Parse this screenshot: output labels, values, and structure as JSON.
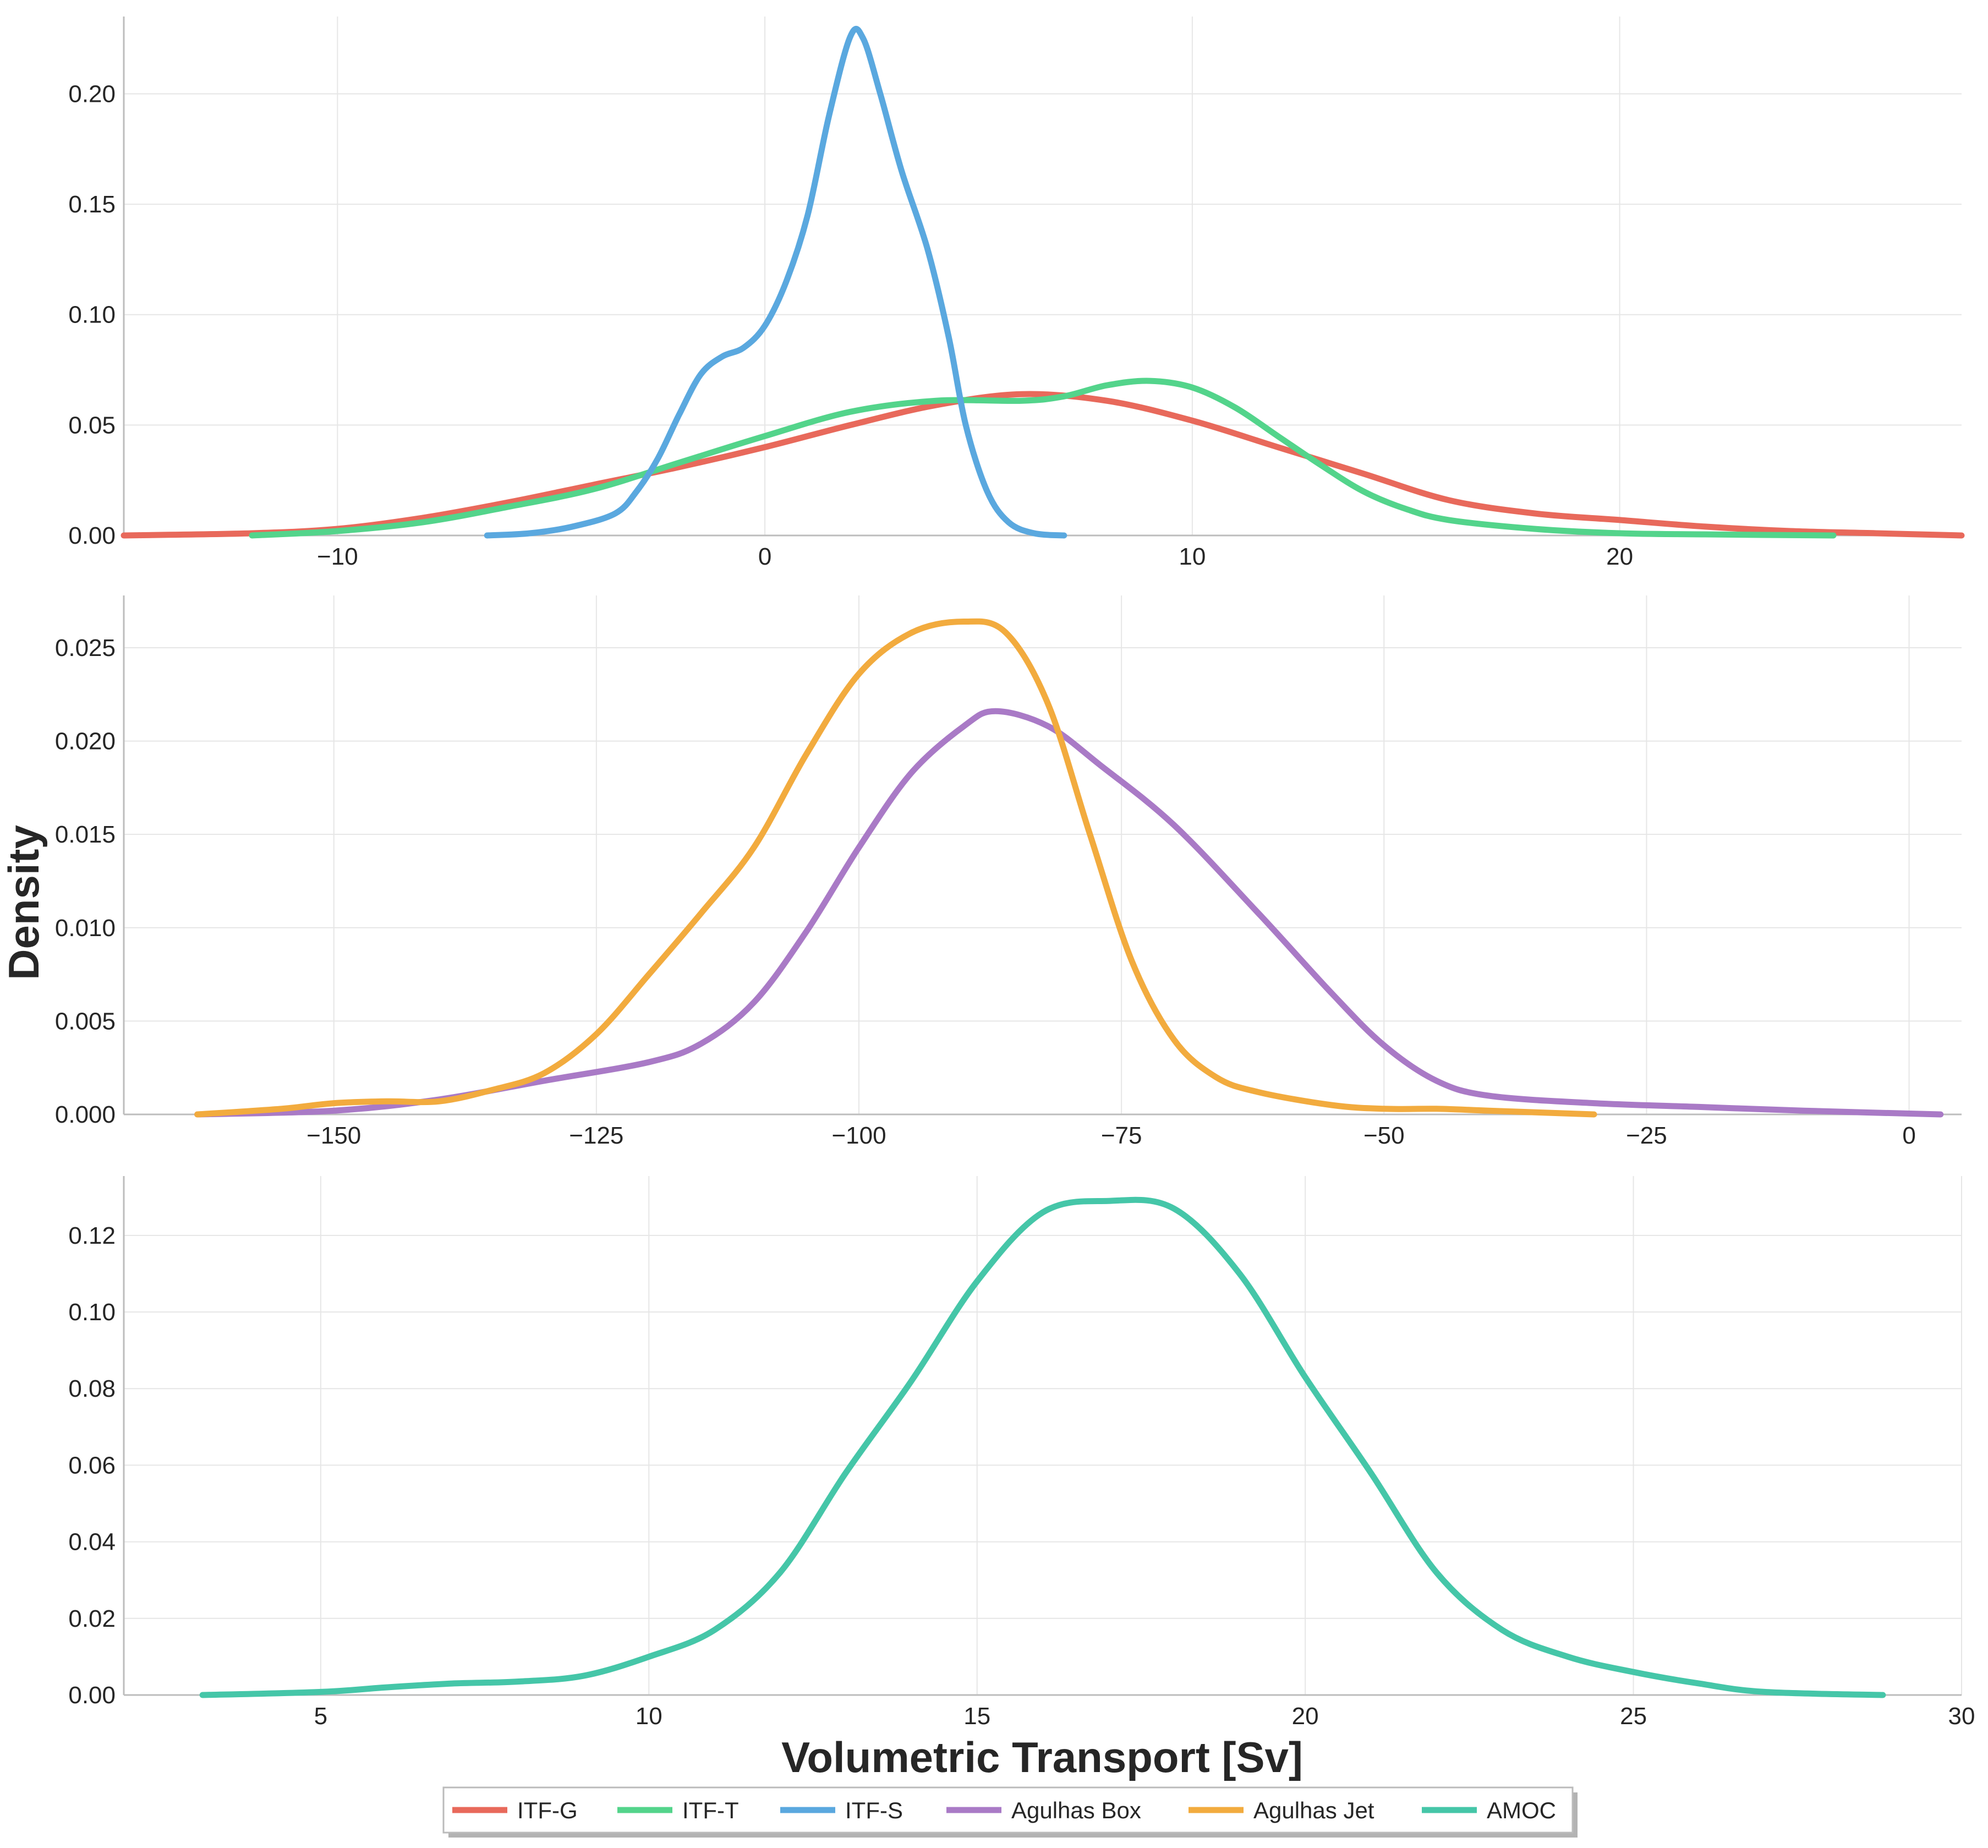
{
  "figure": {
    "ylabel": "Density",
    "xlabel": "Volumetric Transport [Sv]"
  },
  "legend": {
    "items": [
      {
        "label": "ITF-G",
        "color": "#e8695b"
      },
      {
        "label": "ITF-T",
        "color": "#53d48b"
      },
      {
        "label": "ITF-S",
        "color": "#5aa8df"
      },
      {
        "label": "Agulhas Box",
        "color": "#a97ac6"
      },
      {
        "label": "Agulhas Jet",
        "color": "#f2ab3e"
      },
      {
        "label": "AMOC",
        "color": "#45c6a8"
      }
    ]
  },
  "chart_data": [
    {
      "type": "line",
      "name": "top-panel",
      "xlim": [
        -15,
        28
      ],
      "ylim": [
        0,
        0.235
      ],
      "xticks": [
        -10,
        0,
        10,
        20
      ],
      "xtick_labels": [
        "−10",
        "0",
        "10",
        "20"
      ],
      "yticks": [
        0,
        0.05,
        0.1,
        0.15,
        0.2
      ],
      "ytick_labels": [
        "0.00",
        "0.05",
        "0.10",
        "0.15",
        "0.20"
      ],
      "grid": true,
      "series": [
        {
          "name": "ITF-G",
          "color": "#e8695b",
          "x": [
            -15,
            -12,
            -10,
            -8,
            -6,
            -4,
            -2,
            0,
            2,
            4,
            6,
            8,
            10,
            12,
            14,
            16,
            18,
            20,
            22,
            24,
            26,
            28
          ],
          "y": [
            0.0,
            0.001,
            0.003,
            0.008,
            0.015,
            0.023,
            0.031,
            0.04,
            0.05,
            0.059,
            0.064,
            0.061,
            0.052,
            0.04,
            0.028,
            0.016,
            0.01,
            0.007,
            0.004,
            0.002,
            0.001,
            0.0
          ]
        },
        {
          "name": "ITF-T",
          "color": "#53d48b",
          "x": [
            -12,
            -10,
            -8,
            -6,
            -4,
            -2,
            0,
            2,
            4,
            6,
            7,
            8,
            9,
            10,
            11,
            12,
            13,
            14,
            15,
            16,
            18,
            20,
            22,
            25
          ],
          "y": [
            0.0,
            0.002,
            0.006,
            0.013,
            0.021,
            0.033,
            0.045,
            0.056,
            0.061,
            0.061,
            0.063,
            0.068,
            0.07,
            0.067,
            0.058,
            0.045,
            0.032,
            0.02,
            0.012,
            0.007,
            0.003,
            0.001,
            0.0005,
            0.0
          ]
        },
        {
          "name": "ITF-S",
          "color": "#5aa8df",
          "x": [
            -6.5,
            -5.5,
            -4.5,
            -3.5,
            -3,
            -2.5,
            -2,
            -1.5,
            -1,
            -0.5,
            0,
            0.5,
            1,
            1.5,
            2,
            2.3,
            2.7,
            3.2,
            3.8,
            4.3,
            4.7,
            5.2,
            5.7,
            6.3,
            7
          ],
          "y": [
            0.0,
            0.001,
            0.004,
            0.01,
            0.02,
            0.035,
            0.055,
            0.073,
            0.081,
            0.085,
            0.095,
            0.115,
            0.145,
            0.19,
            0.226,
            0.225,
            0.2,
            0.165,
            0.13,
            0.09,
            0.05,
            0.02,
            0.006,
            0.001,
            0.0
          ]
        }
      ]
    },
    {
      "type": "line",
      "name": "middle-panel",
      "xlim": [
        -170,
        5
      ],
      "ylim": [
        0,
        0.0278
      ],
      "xticks": [
        -150,
        -125,
        -100,
        -75,
        -50,
        -25,
        0
      ],
      "xtick_labels": [
        "−150",
        "−125",
        "−100",
        "−75",
        "−50",
        "−25",
        "0"
      ],
      "yticks": [
        0,
        0.005,
        0.01,
        0.015,
        0.02,
        0.025
      ],
      "ytick_labels": [
        "0.000",
        "0.005",
        "0.010",
        "0.015",
        "0.020",
        "0.025"
      ],
      "grid": true,
      "series": [
        {
          "name": "Agulhas Box",
          "color": "#a97ac6",
          "x": [
            -163,
            -150,
            -140,
            -130,
            -120,
            -115,
            -110,
            -105,
            -100,
            -95,
            -90,
            -87,
            -82,
            -77,
            -70,
            -62,
            -55,
            -50,
            -45,
            -40,
            -30,
            -20,
            -10,
            3
          ],
          "y": [
            0.0,
            0.0002,
            0.0008,
            0.0018,
            0.0028,
            0.0038,
            0.006,
            0.0098,
            0.0143,
            0.0183,
            0.0208,
            0.0216,
            0.0208,
            0.0187,
            0.0155,
            0.0108,
            0.0065,
            0.0037,
            0.0018,
            0.001,
            0.0006,
            0.0004,
            0.0002,
            0.0
          ]
        },
        {
          "name": "Agulhas Jet",
          "color": "#f2ab3e",
          "x": [
            -163,
            -155,
            -150,
            -145,
            -140,
            -135,
            -130,
            -125,
            -120,
            -115,
            -110,
            -105,
            -100,
            -95,
            -90,
            -86,
            -82,
            -78,
            -74,
            -70,
            -66,
            -62,
            -55,
            -50,
            -45,
            -40,
            -30
          ],
          "y": [
            0.0,
            0.0003,
            0.0006,
            0.0007,
            0.0007,
            0.0013,
            0.0022,
            0.0043,
            0.0075,
            0.0108,
            0.0143,
            0.0193,
            0.0236,
            0.0258,
            0.0264,
            0.0258,
            0.022,
            0.015,
            0.0082,
            0.004,
            0.002,
            0.0012,
            0.0005,
            0.0003,
            0.0003,
            0.0002,
            0.0
          ]
        }
      ]
    },
    {
      "type": "line",
      "name": "bottom-panel",
      "xlim": [
        2,
        30
      ],
      "ylim": [
        0,
        0.1355
      ],
      "xticks": [
        5,
        10,
        15,
        20,
        25,
        30
      ],
      "xtick_labels": [
        "5",
        "10",
        "15",
        "20",
        "25",
        "30"
      ],
      "yticks": [
        0,
        0.02,
        0.04,
        0.06,
        0.08,
        0.1,
        0.12
      ],
      "ytick_labels": [
        "0.00",
        "0.02",
        "0.04",
        "0.06",
        "0.08",
        "0.10",
        "0.12"
      ],
      "grid": true,
      "series": [
        {
          "name": "AMOC",
          "color": "#45c6a8",
          "x": [
            3.2,
            5,
            6,
            7,
            8,
            9,
            10,
            11,
            12,
            13,
            14,
            15,
            16,
            17,
            18,
            19,
            20,
            21,
            22,
            23,
            24,
            25,
            26,
            27,
            28.8
          ],
          "y": [
            0.0,
            0.0008,
            0.002,
            0.003,
            0.0035,
            0.005,
            0.01,
            0.017,
            0.032,
            0.058,
            0.082,
            0.108,
            0.126,
            0.129,
            0.127,
            0.11,
            0.083,
            0.058,
            0.032,
            0.017,
            0.01,
            0.006,
            0.003,
            0.0008,
            0.0
          ]
        }
      ]
    }
  ]
}
